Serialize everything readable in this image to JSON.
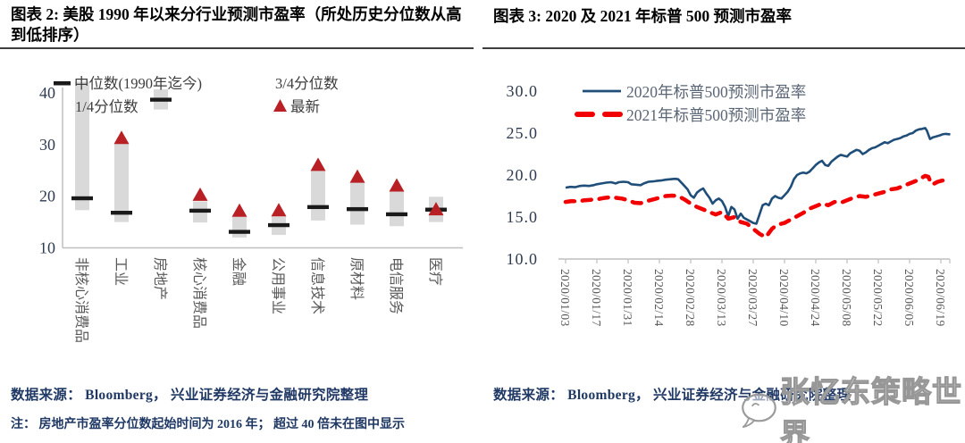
{
  "left_panel": {
    "title": "图表 2: 美股 1990 年以来分行业预测市盈率（所处历史分位数从高到低排序）",
    "source": "数据来源： Bloomberg， 兴业证券经济与金融研究院整理",
    "note": "注： 房地产市盈率分位数起始时间为 2016 年； 超过 40 倍未在图中显示"
  },
  "right_panel": {
    "title": "图表 3: 2020 及 2021 年标普 500 预测市盈率",
    "source": "数据来源： Bloomberg， 兴业证券经济与金融研究院整理",
    "watermark": "张忆东策略世界"
  },
  "colors": {
    "bar": "#d9d9d9",
    "median": "#1a1a1a",
    "latest": "#b92025",
    "line2020": "#1f4e79",
    "line2021": "#f20000",
    "axis": "#bfbfbf",
    "tick_text": "#2f3b50",
    "label_text": "#595959",
    "legend_text1": "#3d3d3d",
    "legend_text2": "#5a6575",
    "source_text": "#1f3864",
    "rule": "#3d3d3d",
    "watermark_stroke": "#979797"
  },
  "chart_data": [
    {
      "type": "bar",
      "subtype": "quartile-range-with-median-and-latest",
      "title": "美股1990年以来分行业预测市盈率（所处历史分位数从高到低排序）",
      "categories": [
        "非核心消费品",
        "工业",
        "房地产",
        "核心消费品",
        "金融",
        "公用事业",
        "信息技术",
        "原材料",
        "电信服务",
        "医疗"
      ],
      "series": [
        {
          "name": "1/4分位数",
          "values": [
            17.3,
            15.0,
            36.8,
            14.9,
            12.0,
            12.5,
            15.3,
            14.5,
            14.2,
            15.0
          ]
        },
        {
          "name": "3/4分位数",
          "values": [
            42.2,
            30.4,
            40.7,
            19.0,
            16.0,
            16.1,
            25.0,
            22.8,
            21.0,
            19.9
          ]
        },
        {
          "name": "中位数(1990年迄今)",
          "values": [
            19.6,
            16.8,
            38.7,
            17.2,
            13.1,
            14.4,
            17.9,
            17.5,
            16.5,
            17.4
          ]
        },
        {
          "name": "最新",
          "values": [
            null,
            31.4,
            null,
            20.4,
            17.3,
            17.4,
            26.2,
            23.9,
            22.2,
            17.6
          ]
        }
      ],
      "legend": [
        "中位数(1990年迄今)",
        "1/4分位数",
        "3/4分位数",
        "最新"
      ],
      "ylim": [
        10,
        43
      ],
      "yticks": [
        40,
        30,
        20,
        10
      ],
      "grid": false,
      "note_clipping": "超过 40 倍未在图中显示"
    },
    {
      "type": "line",
      "title": "2020 及 2021 年标普 500 预测市盈率",
      "x_tick_labels": [
        "2020/01/03",
        "2020/01/17",
        "2020/01/31",
        "2020/02/14",
        "2020/02/28",
        "2020/03/13",
        "2020/03/27",
        "2020/04/10",
        "2020/04/24",
        "2020/05/08",
        "2020/05/22",
        "2020/06/05",
        "2020/06/19"
      ],
      "ylim": [
        10,
        31.5
      ],
      "yticks": [
        30,
        25,
        20,
        15,
        10
      ],
      "ytick_labels": [
        "30.0",
        "25.0",
        "20.0",
        "15.0",
        "10.0"
      ],
      "grid": false,
      "legend_position": "top-inside",
      "series": [
        {
          "name": "2020年标普500预测市盈率",
          "style": "solid",
          "color": "#1f4e79",
          "points": [
            [
              0,
              18.5
            ],
            [
              0.15,
              18.6
            ],
            [
              0.3,
              18.55
            ],
            [
              0.45,
              18.7
            ],
            [
              0.6,
              18.75
            ],
            [
              0.75,
              18.7
            ],
            [
              0.9,
              18.8
            ],
            [
              1.0,
              18.9
            ],
            [
              1.15,
              19.0
            ],
            [
              1.3,
              19.1
            ],
            [
              1.45,
              19.15
            ],
            [
              1.6,
              19.0
            ],
            [
              1.7,
              19.15
            ],
            [
              1.85,
              19.2
            ],
            [
              2.0,
              19.15
            ],
            [
              2.1,
              18.9
            ],
            [
              2.25,
              18.85
            ],
            [
              2.4,
              18.8
            ],
            [
              2.5,
              19.0
            ],
            [
              2.65,
              19.2
            ],
            [
              2.8,
              19.25
            ],
            [
              2.9,
              19.3
            ],
            [
              3.05,
              19.35
            ],
            [
              3.2,
              19.45
            ],
            [
              3.35,
              19.5
            ],
            [
              3.5,
              19.55
            ],
            [
              3.6,
              19.5
            ],
            [
              3.75,
              18.9
            ],
            [
              3.9,
              18.3
            ],
            [
              4.0,
              17.6
            ],
            [
              4.1,
              17.3
            ],
            [
              4.2,
              17.9
            ],
            [
              4.3,
              18.2
            ],
            [
              4.4,
              18.4
            ],
            [
              4.5,
              17.8
            ],
            [
              4.6,
              17.3
            ],
            [
              4.7,
              16.6
            ],
            [
              4.8,
              17.0
            ],
            [
              4.9,
              17.2
            ],
            [
              5.0,
              16.9
            ],
            [
              5.1,
              16.2
            ],
            [
              5.2,
              15.1
            ],
            [
              5.3,
              16.2
            ],
            [
              5.4,
              15.9
            ],
            [
              5.5,
              14.8
            ],
            [
              5.6,
              15.4
            ],
            [
              5.7,
              14.9
            ],
            [
              5.8,
              14.7
            ],
            [
              5.9,
              14.5
            ],
            [
              6.0,
              14.3
            ],
            [
              6.1,
              14.2
            ],
            [
              6.2,
              15.3
            ],
            [
              6.3,
              16.4
            ],
            [
              6.4,
              16.6
            ],
            [
              6.5,
              16.4
            ],
            [
              6.6,
              17.2
            ],
            [
              6.7,
              17.5
            ],
            [
              6.8,
              17.3
            ],
            [
              6.9,
              17.2
            ],
            [
              7.0,
              17.6
            ],
            [
              7.1,
              18.0
            ],
            [
              7.2,
              18.6
            ],
            [
              7.3,
              19.5
            ],
            [
              7.4,
              20.0
            ],
            [
              7.5,
              20.2
            ],
            [
              7.6,
              20.3
            ],
            [
              7.7,
              20.2
            ],
            [
              7.8,
              20.4
            ],
            [
              7.9,
              20.8
            ],
            [
              8.0,
              21.2
            ],
            [
              8.1,
              21.5
            ],
            [
              8.2,
              21.7
            ],
            [
              8.3,
              21.2
            ],
            [
              8.4,
              21.1
            ],
            [
              8.5,
              21.6
            ],
            [
              8.6,
              21.9
            ],
            [
              8.7,
              22.2
            ],
            [
              8.8,
              22.4
            ],
            [
              8.9,
              22.3
            ],
            [
              9.0,
              22.2
            ],
            [
              9.1,
              22.6
            ],
            [
              9.2,
              22.8
            ],
            [
              9.3,
              23.0
            ],
            [
              9.4,
              22.9
            ],
            [
              9.5,
              22.5
            ],
            [
              9.6,
              22.7
            ],
            [
              9.7,
              23.0
            ],
            [
              9.8,
              23.2
            ],
            [
              9.9,
              23.3
            ],
            [
              10.0,
              23.5
            ],
            [
              10.1,
              23.7
            ],
            [
              10.2,
              23.9
            ],
            [
              10.3,
              23.8
            ],
            [
              10.4,
              24.0
            ],
            [
              10.5,
              24.2
            ],
            [
              10.6,
              24.3
            ],
            [
              10.7,
              24.4
            ],
            [
              10.8,
              24.6
            ],
            [
              10.9,
              24.7
            ],
            [
              11.0,
              24.9
            ],
            [
              11.1,
              25.0
            ],
            [
              11.2,
              25.3
            ],
            [
              11.3,
              25.45
            ],
            [
              11.4,
              25.5
            ],
            [
              11.5,
              25.6
            ],
            [
              11.55,
              25.3
            ],
            [
              11.65,
              24.3
            ],
            [
              11.75,
              24.5
            ],
            [
              11.85,
              24.6
            ],
            [
              11.95,
              24.7
            ],
            [
              12.05,
              24.85
            ],
            [
              12.15,
              24.9
            ],
            [
              12.3,
              24.85
            ]
          ]
        },
        {
          "name": "2021年标普500预测市盈率",
          "style": "dashed",
          "color": "#f20000",
          "points": [
            [
              0,
              16.8
            ],
            [
              0.2,
              16.9
            ],
            [
              0.4,
              16.85
            ],
            [
              0.6,
              17.0
            ],
            [
              0.8,
              17.05
            ],
            [
              1.0,
              17.1
            ],
            [
              1.2,
              17.25
            ],
            [
              1.4,
              17.35
            ],
            [
              1.6,
              17.3
            ],
            [
              1.8,
              17.2
            ],
            [
              2.0,
              17.0
            ],
            [
              2.2,
              16.7
            ],
            [
              2.4,
              16.65
            ],
            [
              2.6,
              16.9
            ],
            [
              2.8,
              17.1
            ],
            [
              3.0,
              17.3
            ],
            [
              3.2,
              17.5
            ],
            [
              3.4,
              17.55
            ],
            [
              3.6,
              17.5
            ],
            [
              3.8,
              17.1
            ],
            [
              4.0,
              16.6
            ],
            [
              4.2,
              16.2
            ],
            [
              4.4,
              15.9
            ],
            [
              4.6,
              15.6
            ],
            [
              4.8,
              15.3
            ],
            [
              5.0,
              15.6
            ],
            [
              5.2,
              14.8
            ],
            [
              5.4,
              15.0
            ],
            [
              5.6,
              14.4
            ],
            [
              5.8,
              14.2
            ],
            [
              6.0,
              13.6
            ],
            [
              6.1,
              13.3
            ],
            [
              6.2,
              13.0
            ],
            [
              6.3,
              12.8
            ],
            [
              6.4,
              12.6
            ],
            [
              6.5,
              13.1
            ],
            [
              6.6,
              13.6
            ],
            [
              6.7,
              13.9
            ],
            [
              6.8,
              14.1
            ],
            [
              6.9,
              14.2
            ],
            [
              7.0,
              14.3
            ],
            [
              7.2,
              14.7
            ],
            [
              7.4,
              15.1
            ],
            [
              7.6,
              15.5
            ],
            [
              7.8,
              16.0
            ],
            [
              8.0,
              16.3
            ],
            [
              8.2,
              16.6
            ],
            [
              8.4,
              16.4
            ],
            [
              8.6,
              16.8
            ],
            [
              8.8,
              16.7
            ],
            [
              9.0,
              17.0
            ],
            [
              9.2,
              17.3
            ],
            [
              9.4,
              17.5
            ],
            [
              9.6,
              17.4
            ],
            [
              9.8,
              17.6
            ],
            [
              10.0,
              17.8
            ],
            [
              10.2,
              18.0
            ],
            [
              10.4,
              18.3
            ],
            [
              10.6,
              18.4
            ],
            [
              10.8,
              18.7
            ],
            [
              11.0,
              19.0
            ],
            [
              11.2,
              19.3
            ],
            [
              11.4,
              19.7
            ],
            [
              11.5,
              19.9
            ],
            [
              11.6,
              19.8
            ],
            [
              11.7,
              18.9
            ],
            [
              11.8,
              19.0
            ],
            [
              11.9,
              19.2
            ],
            [
              12.0,
              19.3
            ],
            [
              12.15,
              19.45
            ],
            [
              12.3,
              19.3
            ]
          ]
        }
      ]
    }
  ]
}
